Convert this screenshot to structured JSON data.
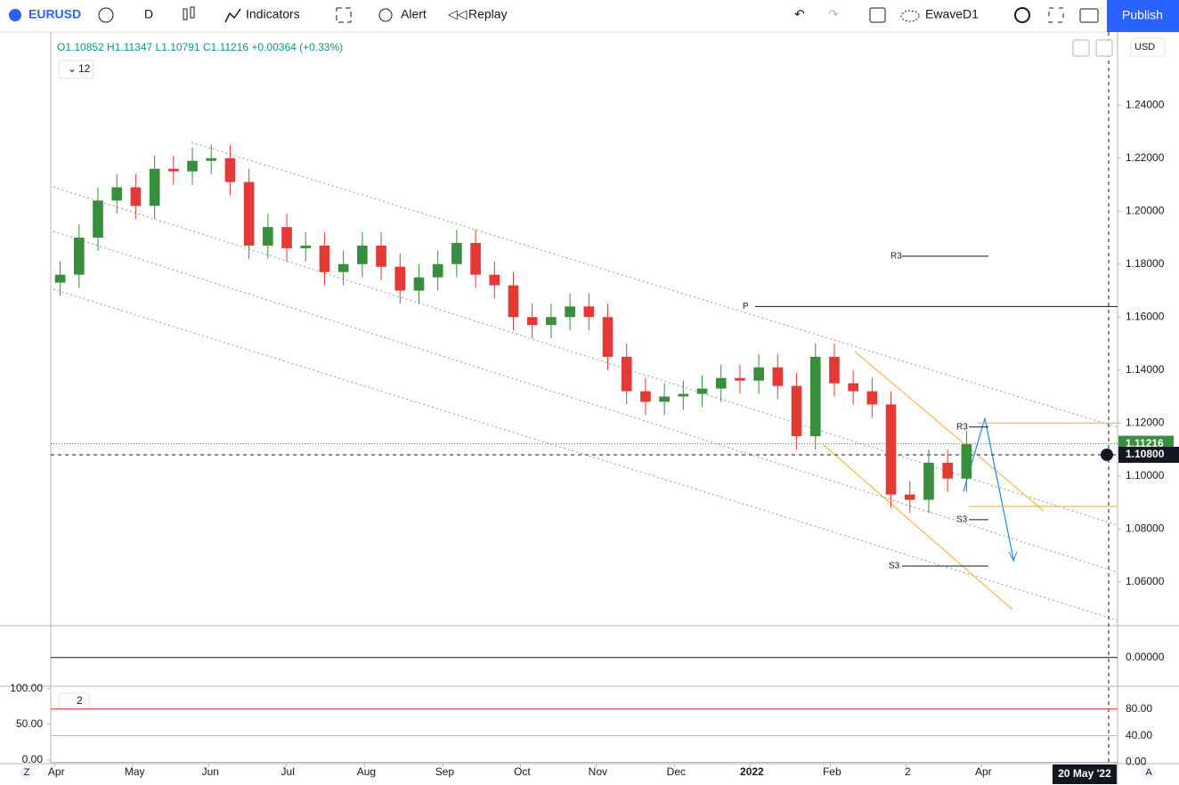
{
  "toolbar": {
    "symbol": "EURUSD",
    "interval": "D",
    "indicators": "Indicators",
    "alert": "Alert",
    "replay": "Replay",
    "layout": "EwaveD1",
    "publish": "Publish"
  },
  "legend": {
    "ohlc": "O1.10852 H1.11347 L1.10791 C1.11216 +0.00364 (+0.33%)",
    "collapse": "12",
    "currency": "USD",
    "pane3": "2"
  },
  "axis_buttons": {
    "left": "Z",
    "right": "A"
  },
  "chart_data": {
    "type": "candlestick",
    "open": [
      1.173,
      1.176,
      1.19,
      1.204,
      1.209,
      1.202,
      1.216,
      1.215,
      1.219,
      1.22,
      1.211,
      1.187,
      1.194,
      1.186,
      1.187,
      1.177,
      1.18,
      1.187,
      1.179,
      1.17,
      1.175,
      1.18,
      1.188,
      1.176,
      1.172,
      1.16,
      1.157,
      1.16,
      1.164,
      1.16,
      1.145,
      1.132,
      1.128,
      1.13,
      1.131,
      1.133,
      1.137,
      1.136,
      1.141,
      1.134,
      1.115,
      1.145,
      1.135,
      1.132,
      1.127,
      1.093,
      1.091,
      1.105,
      1.099
    ],
    "high": [
      1.181,
      1.195,
      1.209,
      1.214,
      1.214,
      1.221,
      1.221,
      1.224,
      1.225,
      1.225,
      1.216,
      1.199,
      1.199,
      1.192,
      1.192,
      1.185,
      1.192,
      1.192,
      1.184,
      1.18,
      1.185,
      1.193,
      1.193,
      1.181,
      1.177,
      1.165,
      1.165,
      1.169,
      1.169,
      1.165,
      1.15,
      1.137,
      1.135,
      1.136,
      1.138,
      1.142,
      1.142,
      1.146,
      1.146,
      1.139,
      1.15,
      1.15,
      1.14,
      1.137,
      1.132,
      1.098,
      1.11,
      1.11,
      1.117
    ],
    "low": [
      1.168,
      1.171,
      1.185,
      1.199,
      1.197,
      1.197,
      1.21,
      1.21,
      1.214,
      1.206,
      1.182,
      1.182,
      1.181,
      1.181,
      1.172,
      1.172,
      1.175,
      1.174,
      1.165,
      1.165,
      1.17,
      1.175,
      1.171,
      1.167,
      1.155,
      1.152,
      1.152,
      1.155,
      1.155,
      1.14,
      1.127,
      1.123,
      1.123,
      1.125,
      1.126,
      1.128,
      1.131,
      1.131,
      1.129,
      1.11,
      1.11,
      1.13,
      1.127,
      1.122,
      1.088,
      1.086,
      1.086,
      1.094,
      1.094
    ],
    "close": [
      1.176,
      1.19,
      1.204,
      1.209,
      1.202,
      1.216,
      1.215,
      1.219,
      1.22,
      1.211,
      1.187,
      1.194,
      1.186,
      1.187,
      1.177,
      1.18,
      1.187,
      1.179,
      1.17,
      1.175,
      1.18,
      1.188,
      1.176,
      1.172,
      1.16,
      1.157,
      1.16,
      1.164,
      1.16,
      1.145,
      1.132,
      1.128,
      1.13,
      1.131,
      1.133,
      1.137,
      1.136,
      1.141,
      1.134,
      1.115,
      1.145,
      1.135,
      1.132,
      1.127,
      1.093,
      1.091,
      1.105,
      1.099,
      1.112
    ],
    "up_color": "#388e3c",
    "down_color": "#e53935",
    "xlim": [
      -0.2,
      56.3
    ],
    "xticks": [
      {
        "value": 0,
        "label": "Apr"
      },
      {
        "value": 4.15,
        "label": "May"
      },
      {
        "value": 8.16,
        "label": "Jun"
      },
      {
        "value": 12.26,
        "label": "Jul"
      },
      {
        "value": 16.42,
        "label": "Aug"
      },
      {
        "value": 20.57,
        "label": "Sep"
      },
      {
        "value": 24.67,
        "label": "Oct"
      },
      {
        "value": 28.68,
        "label": "Nov"
      },
      {
        "value": 32.83,
        "label": "Dec"
      },
      {
        "value": 36.84,
        "label": "2022"
      },
      {
        "value": 41.08,
        "label": "Feb"
      },
      {
        "value": 45.09,
        "label": "2"
      },
      {
        "value": 49.1,
        "label": "Apr"
      }
    ],
    "crosshair_date": "20 May '22",
    "ylim": [
      1.0438,
      1.2673
    ],
    "yticks": [
      {
        "value": 1.06,
        "label": "1.06000"
      },
      {
        "value": 1.08,
        "label": "1.08000"
      },
      {
        "value": 1.1,
        "label": "1.10000"
      },
      {
        "value": 1.12,
        "label": "1.12000"
      },
      {
        "value": 1.14,
        "label": "1.14000"
      },
      {
        "value": 1.16,
        "label": "1.16000"
      },
      {
        "value": 1.18,
        "label": "1.18000"
      },
      {
        "value": 1.2,
        "label": "1.20000"
      },
      {
        "value": 1.22,
        "label": "1.22000"
      },
      {
        "value": 1.24,
        "label": "1.24000"
      }
    ],
    "last_price": {
      "value": 1.11216,
      "label": "1.11216"
    },
    "crosshair_price": {
      "value": 1.108,
      "label": "1.10800"
    },
    "pivots": [
      {
        "label": "R3",
        "value": 1.183
      },
      {
        "label": "P",
        "value": 1.164
      },
      {
        "label": "S3",
        "value": 1.066
      },
      {
        "label": "R3",
        "value": 1.1185
      },
      {
        "label": "S3",
        "value": 1.0835
      }
    ],
    "hlines": [
      1.12,
      1.0885
    ],
    "osc1": {
      "ylim": [
        -0.09,
        0.1
      ],
      "yticks": [
        {
          "value": 0,
          "label": "0.00000"
        }
      ]
    },
    "osc2": {
      "ylim_left": [
        -5,
        102
      ],
      "yticks_left": [
        {
          "value": 100,
          "label": "100.00"
        },
        {
          "value": 50,
          "label": "50.00"
        },
        {
          "value": 0,
          "label": "0.00"
        }
      ],
      "ylim_right": [
        -2,
        113
      ],
      "yticks_right": [
        {
          "value": 80,
          "label": "80.00"
        },
        {
          "value": 40,
          "label": "40.00"
        },
        {
          "value": 0,
          "label": "0.00"
        }
      ]
    }
  }
}
